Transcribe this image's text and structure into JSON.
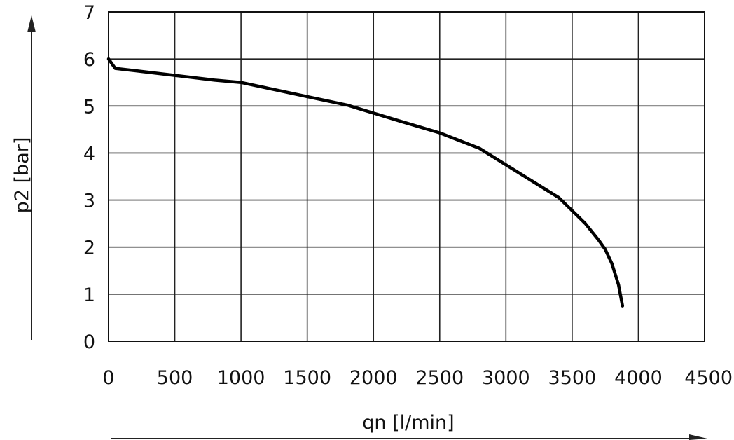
{
  "chart_data": {
    "type": "line",
    "title": "",
    "xlabel": "qn [l/min]",
    "ylabel": "p2 [bar]",
    "xlim": [
      0,
      4500
    ],
    "ylim": [
      0,
      7
    ],
    "xticks": [
      0,
      500,
      1000,
      1500,
      2000,
      2500,
      3000,
      3500,
      4000,
      4500
    ],
    "yticks": [
      0,
      1,
      2,
      3,
      4,
      5,
      6,
      7
    ],
    "grid": true,
    "series": [
      {
        "x": [
          0,
          50,
          200,
          500,
          800,
          1000,
          1200,
          1500,
          1800,
          2000,
          2200,
          2500,
          2800,
          3000,
          3200,
          3400,
          3600,
          3700,
          3750,
          3800,
          3850,
          3880
        ],
        "y": [
          6.0,
          5.8,
          5.75,
          5.65,
          5.55,
          5.5,
          5.38,
          5.2,
          5.02,
          4.85,
          4.68,
          4.43,
          4.1,
          3.75,
          3.4,
          3.05,
          2.5,
          2.15,
          1.95,
          1.65,
          1.2,
          0.75
        ]
      }
    ]
  }
}
